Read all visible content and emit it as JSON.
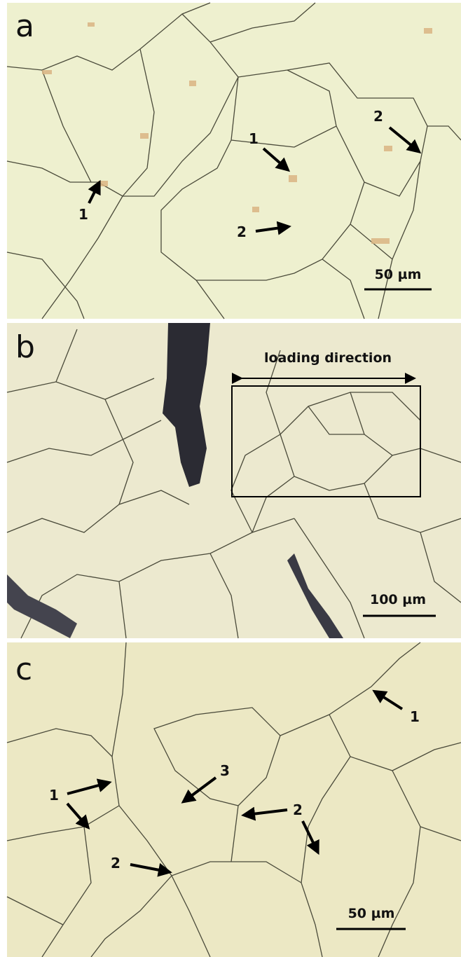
{
  "panels": [
    {
      "label": "a",
      "scale_bar": "50 µm",
      "annotations": [
        "1",
        "2",
        "1",
        "2"
      ]
    },
    {
      "label": "b",
      "scale_bar": "100 µm",
      "annotations": [
        "loading direction"
      ]
    },
    {
      "label": "c",
      "scale_bar": "50 µm",
      "annotations": [
        "1",
        "1",
        "3",
        "2",
        "2"
      ]
    }
  ]
}
